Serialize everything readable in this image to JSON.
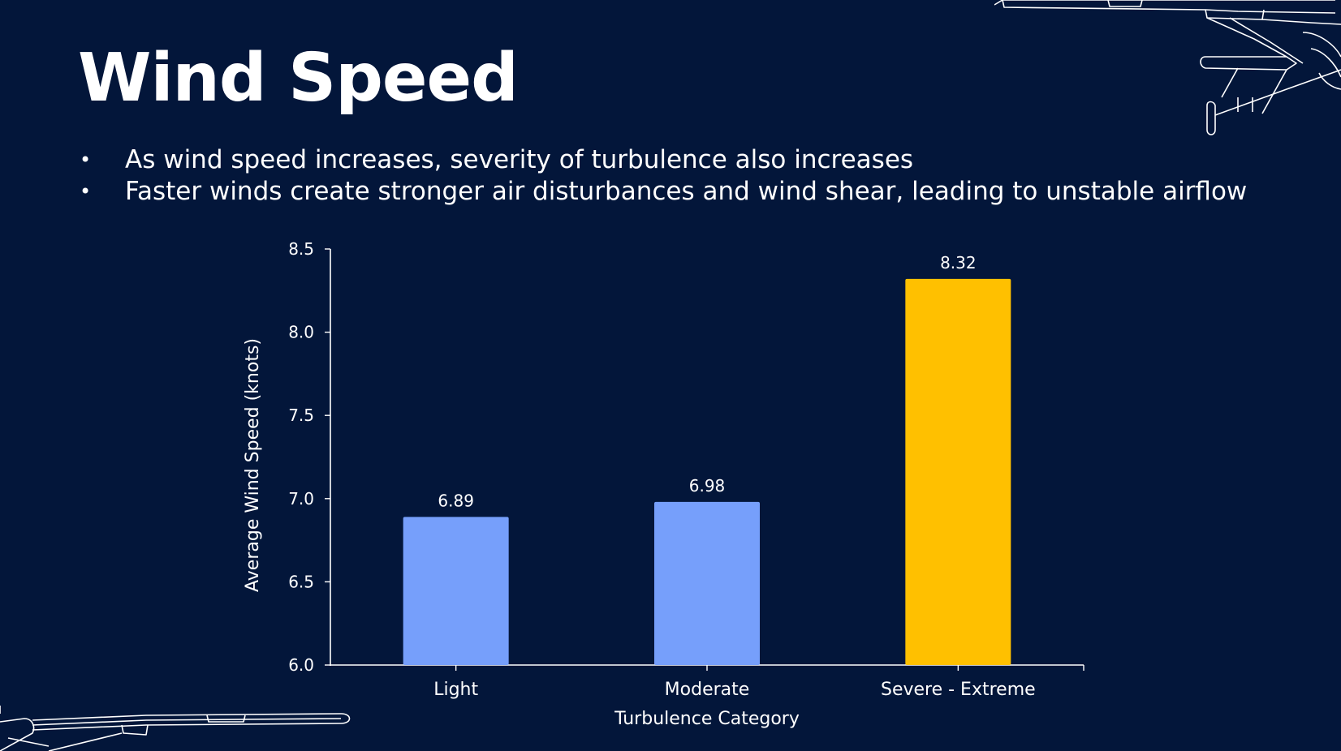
{
  "slide": {
    "title": "Wind Speed",
    "bullets": [
      "As wind speed increases, severity of turbulence also increases",
      "Faster winds create stronger air disturbances and wind shear, leading to unstable airflow"
    ],
    "bullet_glyph": "•"
  },
  "colors": {
    "background": "#03163a",
    "bar_default": "#769ffb",
    "bar_highlight": "#ffc000",
    "axis": "#ffffff",
    "text": "#ffffff"
  },
  "chart_data": {
    "type": "bar",
    "title": "",
    "xlabel": "Turbulence Category",
    "ylabel": "Average Wind Speed (knots)",
    "categories": [
      "Light",
      "Moderate",
      "Severe - Extreme"
    ],
    "values": [
      6.89,
      6.98,
      8.32
    ],
    "value_labels": [
      "6.89",
      "6.98",
      "8.32"
    ],
    "bar_colors": [
      "#769ffb",
      "#769ffb",
      "#ffc000"
    ],
    "ylim": [
      6.0,
      8.5
    ],
    "yticks": [
      6.0,
      6.5,
      7.0,
      7.5,
      8.0,
      8.5
    ],
    "ytick_labels": [
      "6.0",
      "6.5",
      "7.0",
      "7.5",
      "8.0",
      "8.5"
    ],
    "grid": false,
    "legend": "none"
  }
}
